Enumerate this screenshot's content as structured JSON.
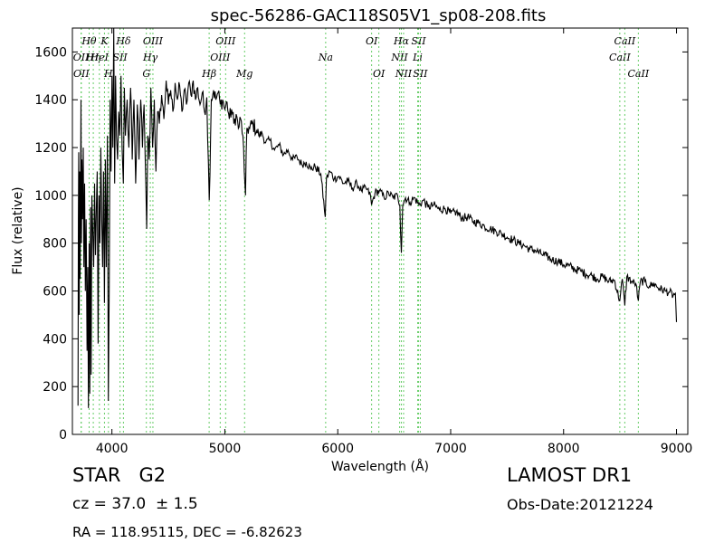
{
  "chart_data": {
    "type": "line",
    "title": "spec-56286-GAC118S05V1_sp08-208.fits",
    "xlabel": "Wavelength (Å)",
    "ylabel": "Flux (relative)",
    "xlim": [
      3650,
      9100
    ],
    "ylim": [
      0,
      1700
    ],
    "xticks": [
      4000,
      5000,
      6000,
      7000,
      8000,
      9000
    ],
    "yticks": [
      0,
      200,
      400,
      600,
      800,
      1000,
      1200,
      1400,
      1600
    ],
    "grid": false,
    "line_color": "#000000",
    "marker_line_color": "#66cc66",
    "anchors": [
      [
        3700,
        120
      ],
      [
        3703,
        900
      ],
      [
        3706,
        1180
      ],
      [
        3710,
        500
      ],
      [
        3714,
        1100
      ],
      [
        3718,
        650
      ],
      [
        3722,
        1000
      ],
      [
        3726,
        1400
      ],
      [
        3730,
        800
      ],
      [
        3734,
        1150
      ],
      [
        3740,
        900
      ],
      [
        3746,
        1200
      ],
      [
        3752,
        700
      ],
      [
        3758,
        1050
      ],
      [
        3765,
        600
      ],
      [
        3772,
        900
      ],
      [
        3780,
        350
      ],
      [
        3786,
        700
      ],
      [
        3792,
        110
      ],
      [
        3798,
        800
      ],
      [
        3804,
        170
      ],
      [
        3810,
        950
      ],
      [
        3816,
        250
      ],
      [
        3822,
        1000
      ],
      [
        3830,
        850
      ],
      [
        3838,
        700
      ],
      [
        3846,
        1050
      ],
      [
        3854,
        750
      ],
      [
        3862,
        950
      ],
      [
        3870,
        1100
      ],
      [
        3878,
        380
      ],
      [
        3886,
        1000
      ],
      [
        3894,
        800
      ],
      [
        3902,
        1200
      ],
      [
        3910,
        900
      ],
      [
        3918,
        700
      ],
      [
        3926,
        1100
      ],
      [
        3934,
        550
      ],
      [
        3942,
        1150
      ],
      [
        3950,
        700
      ],
      [
        3960,
        1250
      ],
      [
        3968,
        140
      ],
      [
        3976,
        620
      ],
      [
        3984,
        1400
      ],
      [
        3992,
        1100
      ],
      [
        4000,
        1500
      ],
      [
        4008,
        1200
      ],
      [
        4016,
        1700
      ],
      [
        4024,
        1050
      ],
      [
        4032,
        1500
      ],
      [
        4040,
        1250
      ],
      [
        4050,
        1150
      ],
      [
        4060,
        1350
      ],
      [
        4070,
        1250
      ],
      [
        4080,
        1500
      ],
      [
        4090,
        1200
      ],
      [
        4101,
        1050
      ],
      [
        4110,
        1450
      ],
      [
        4120,
        1250
      ],
      [
        4135,
        1400
      ],
      [
        4150,
        1200
      ],
      [
        4165,
        1450
      ],
      [
        4180,
        1150
      ],
      [
        4195,
        1400
      ],
      [
        4210,
        1050
      ],
      [
        4225,
        1380
      ],
      [
        4240,
        1150
      ],
      [
        4255,
        1400
      ],
      [
        4270,
        1200
      ],
      [
        4285,
        1380
      ],
      [
        4300,
        1050
      ],
      [
        4308,
        860
      ],
      [
        4318,
        1250
      ],
      [
        4330,
        1150
      ],
      [
        4345,
        1450
      ],
      [
        4360,
        1200
      ],
      [
        4375,
        1400
      ],
      [
        4390,
        1100
      ],
      [
        4405,
        1350
      ],
      [
        4420,
        1300
      ],
      [
        4440,
        1420
      ],
      [
        4460,
        1320
      ],
      [
        4480,
        1480
      ],
      [
        4500,
        1380
      ],
      [
        4520,
        1440
      ],
      [
        4540,
        1350
      ],
      [
        4560,
        1470
      ],
      [
        4580,
        1400
      ],
      [
        4600,
        1460
      ],
      [
        4620,
        1350
      ],
      [
        4640,
        1440
      ],
      [
        4660,
        1380
      ],
      [
        4680,
        1470
      ],
      [
        4700,
        1420
      ],
      [
        4720,
        1480
      ],
      [
        4740,
        1400
      ],
      [
        4760,
        1450
      ],
      [
        4780,
        1380
      ],
      [
        4800,
        1430
      ],
      [
        4820,
        1350
      ],
      [
        4840,
        1410
      ],
      [
        4862,
        980
      ],
      [
        4880,
        1400
      ],
      [
        4900,
        1440
      ],
      [
        4920,
        1400
      ],
      [
        4940,
        1430
      ],
      [
        4960,
        1380
      ],
      [
        4980,
        1400
      ],
      [
        5000,
        1360
      ],
      [
        5020,
        1390
      ],
      [
        5040,
        1320
      ],
      [
        5060,
        1360
      ],
      [
        5080,
        1300
      ],
      [
        5100,
        1340
      ],
      [
        5120,
        1280
      ],
      [
        5140,
        1320
      ],
      [
        5160,
        1250
      ],
      [
        5172,
        1100
      ],
      [
        5183,
        1000
      ],
      [
        5195,
        1280
      ],
      [
        5220,
        1280
      ],
      [
        5250,
        1300
      ],
      [
        5280,
        1270
      ],
      [
        5300,
        1250
      ],
      [
        5330,
        1260
      ],
      [
        5360,
        1220
      ],
      [
        5400,
        1230
      ],
      [
        5440,
        1190
      ],
      [
        5480,
        1210
      ],
      [
        5520,
        1170
      ],
      [
        5560,
        1190
      ],
      [
        5600,
        1150
      ],
      [
        5640,
        1160
      ],
      [
        5680,
        1130
      ],
      [
        5720,
        1140
      ],
      [
        5760,
        1110
      ],
      [
        5800,
        1120
      ],
      [
        5850,
        1090
      ],
      [
        5889,
        910
      ],
      [
        5900,
        1070
      ],
      [
        5930,
        1100
      ],
      [
        5970,
        1070
      ],
      [
        6010,
        1080
      ],
      [
        6050,
        1050
      ],
      [
        6090,
        1060
      ],
      [
        6130,
        1030
      ],
      [
        6170,
        1050
      ],
      [
        6210,
        1020
      ],
      [
        6250,
        1030
      ],
      [
        6290,
        1000
      ],
      [
        6300,
        960
      ],
      [
        6330,
        1010
      ],
      [
        6370,
        1020
      ],
      [
        6410,
        990
      ],
      [
        6450,
        1010
      ],
      [
        6490,
        990
      ],
      [
        6530,
        1000
      ],
      [
        6550,
        960
      ],
      [
        6563,
        760
      ],
      [
        6575,
        960
      ],
      [
        6600,
        990
      ],
      [
        6640,
        970
      ],
      [
        6680,
        990
      ],
      [
        6720,
        960
      ],
      [
        6760,
        980
      ],
      [
        6800,
        950
      ],
      [
        6850,
        960
      ],
      [
        6900,
        940
      ],
      [
        6950,
        945
      ],
      [
        7000,
        925
      ],
      [
        7050,
        930
      ],
      [
        7100,
        905
      ],
      [
        7150,
        910
      ],
      [
        7200,
        890
      ],
      [
        7250,
        885
      ],
      [
        7300,
        870
      ],
      [
        7350,
        860
      ],
      [
        7400,
        850
      ],
      [
        7450,
        840
      ],
      [
        7500,
        825
      ],
      [
        7550,
        815
      ],
      [
        7600,
        800
      ],
      [
        7650,
        790
      ],
      [
        7700,
        775
      ],
      [
        7750,
        770
      ],
      [
        7800,
        755
      ],
      [
        7850,
        745
      ],
      [
        7900,
        730
      ],
      [
        7950,
        725
      ],
      [
        8000,
        710
      ],
      [
        8050,
        705
      ],
      [
        8100,
        690
      ],
      [
        8150,
        685
      ],
      [
        8200,
        670
      ],
      [
        8250,
        665
      ],
      [
        8300,
        650
      ],
      [
        8350,
        660
      ],
      [
        8400,
        640
      ],
      [
        8450,
        645
      ],
      [
        8498,
        560
      ],
      [
        8520,
        650
      ],
      [
        8542,
        540
      ],
      [
        8560,
        660
      ],
      [
        8600,
        640
      ],
      [
        8640,
        630
      ],
      [
        8662,
        560
      ],
      [
        8680,
        640
      ],
      [
        8720,
        640
      ],
      [
        8760,
        620
      ],
      [
        8800,
        630
      ],
      [
        8850,
        610
      ],
      [
        8900,
        600
      ],
      [
        8940,
        595
      ],
      [
        8970,
        580
      ],
      [
        8990,
        590
      ],
      [
        9000,
        470
      ]
    ],
    "line_markers": [
      {
        "label": "OII",
        "wave": 3727,
        "row": 1
      },
      {
        "label": "OII",
        "wave": 3729,
        "row": 2
      },
      {
        "label": "Hθ",
        "wave": 3798,
        "row": 0
      },
      {
        "label": "Hη",
        "wave": 3835,
        "row": 1
      },
      {
        "label": "K",
        "wave": 3934,
        "row": 0
      },
      {
        "label": "HeI",
        "wave": 3889,
        "row": 1
      },
      {
        "label": "H",
        "wave": 3969,
        "row": 2
      },
      {
        "label": "SII",
        "wave": 4072,
        "row": 1
      },
      {
        "label": "Hδ",
        "wave": 4102,
        "row": 0
      },
      {
        "label": "G",
        "wave": 4305,
        "row": 2
      },
      {
        "label": "OIII",
        "wave": 4363,
        "row": 0
      },
      {
        "label": "Hγ",
        "wave": 4340,
        "row": 1
      },
      {
        "label": "Hβ",
        "wave": 4861,
        "row": 2
      },
      {
        "label": "OIII",
        "wave": 4959,
        "row": 1
      },
      {
        "label": "OIII",
        "wave": 5007,
        "row": 0
      },
      {
        "label": "Mg",
        "wave": 5175,
        "row": 2
      },
      {
        "label": "Na",
        "wave": 5893,
        "row": 1
      },
      {
        "label": "OI",
        "wave": 6300,
        "row": 0
      },
      {
        "label": "OI",
        "wave": 6364,
        "row": 2
      },
      {
        "label": "NII",
        "wave": 6548,
        "row": 1
      },
      {
        "label": "Hα",
        "wave": 6563,
        "row": 0
      },
      {
        "label": "NII",
        "wave": 6583,
        "row": 2
      },
      {
        "label": "SII",
        "wave": 6716,
        "row": 0
      },
      {
        "label": "Li",
        "wave": 6708,
        "row": 1
      },
      {
        "label": "SII",
        "wave": 6731,
        "row": 2
      },
      {
        "label": "CaII",
        "wave": 8498,
        "row": 1
      },
      {
        "label": "CaII",
        "wave": 8542,
        "row": 0
      },
      {
        "label": "CaII",
        "wave": 8662,
        "row": 2
      }
    ]
  },
  "info": {
    "object_class": "STAR   G2",
    "redshift": "cz = 37.0  ± 1.5",
    "coords": "RA = 118.95115, DEC = -6.82623",
    "survey": "LAMOST DR1",
    "obs_date": "Obs-Date:20121224"
  }
}
